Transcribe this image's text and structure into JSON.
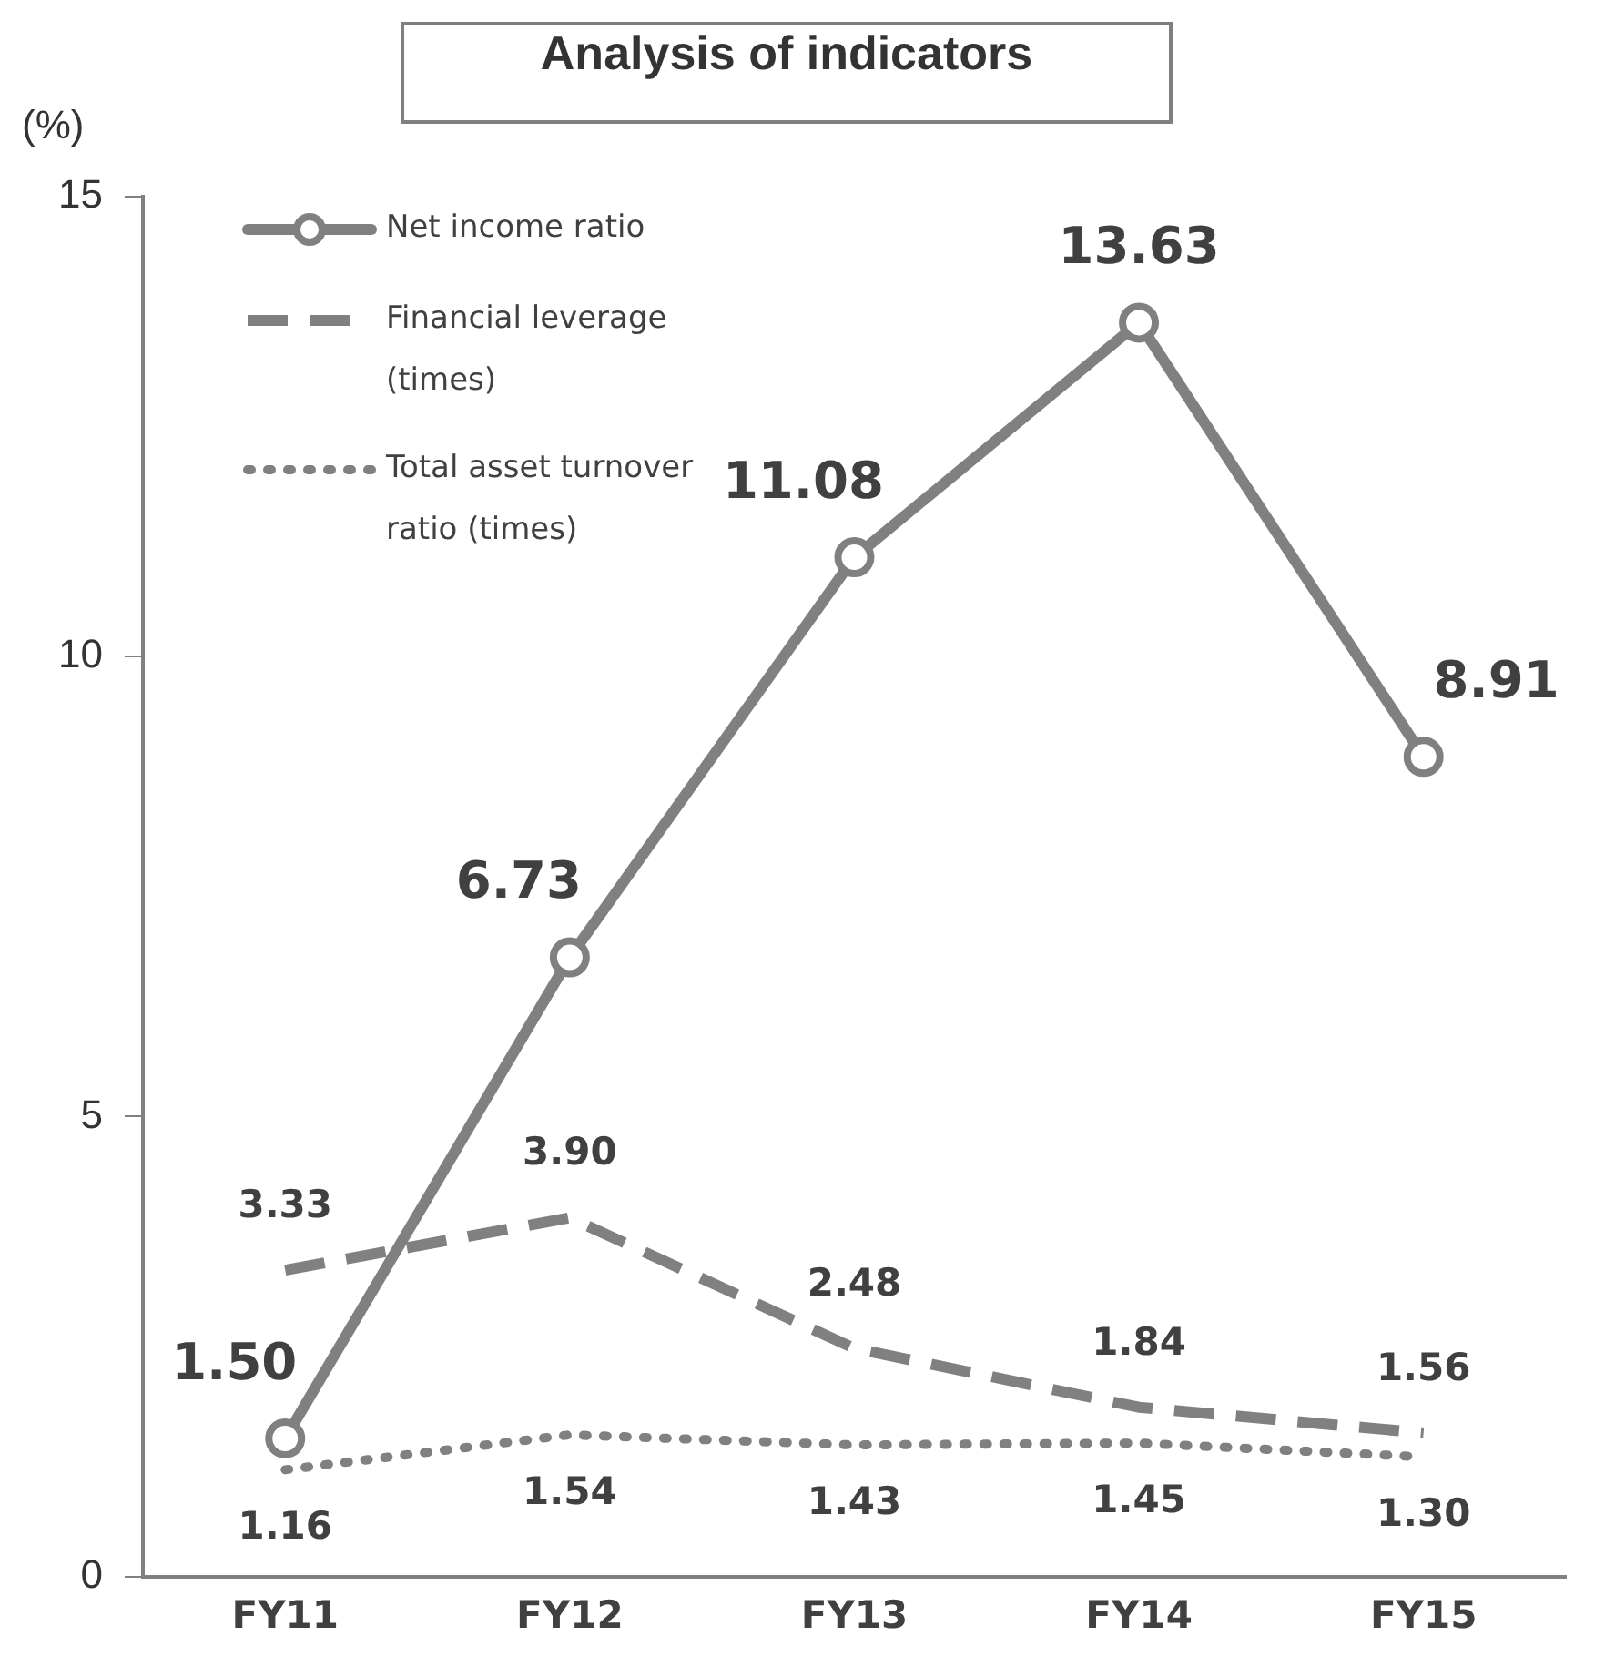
{
  "chart_data": {
    "type": "line",
    "title": "Analysis of indicators",
    "ylabel": "(%)",
    "categories": [
      "FY11",
      "FY12",
      "FY13",
      "FY14",
      "FY15"
    ],
    "series": [
      {
        "name": "Net income ratio",
        "color": "#808080",
        "values": [
          1.5,
          6.73,
          11.08,
          13.63,
          8.91
        ],
        "value_labels": [
          "1.50",
          "6.73",
          "11.08",
          "13.63",
          "8.91"
        ],
        "marker": "circle",
        "line_style": "solid"
      },
      {
        "name": "Financial leverage (times)",
        "color": "#808080",
        "values": [
          3.33,
          3.9,
          2.48,
          1.84,
          1.56
        ],
        "value_labels": [
          "3.33",
          "3.90",
          "2.48",
          "1.84",
          "1.56"
        ],
        "marker": "none",
        "line_style": "dashed"
      },
      {
        "name": "Total asset turnover ratio (times)",
        "color": "#808080",
        "values": [
          1.16,
          1.54,
          1.43,
          1.45,
          1.3
        ],
        "value_labels": [
          "1.16",
          "1.54",
          "1.43",
          "1.45",
          "1.30"
        ],
        "marker": "none",
        "line_style": "dotted"
      }
    ],
    "ylim": [
      0,
      15
    ],
    "yticks": [
      0,
      5,
      10,
      15
    ],
    "grid": false,
    "legend": "top left"
  }
}
